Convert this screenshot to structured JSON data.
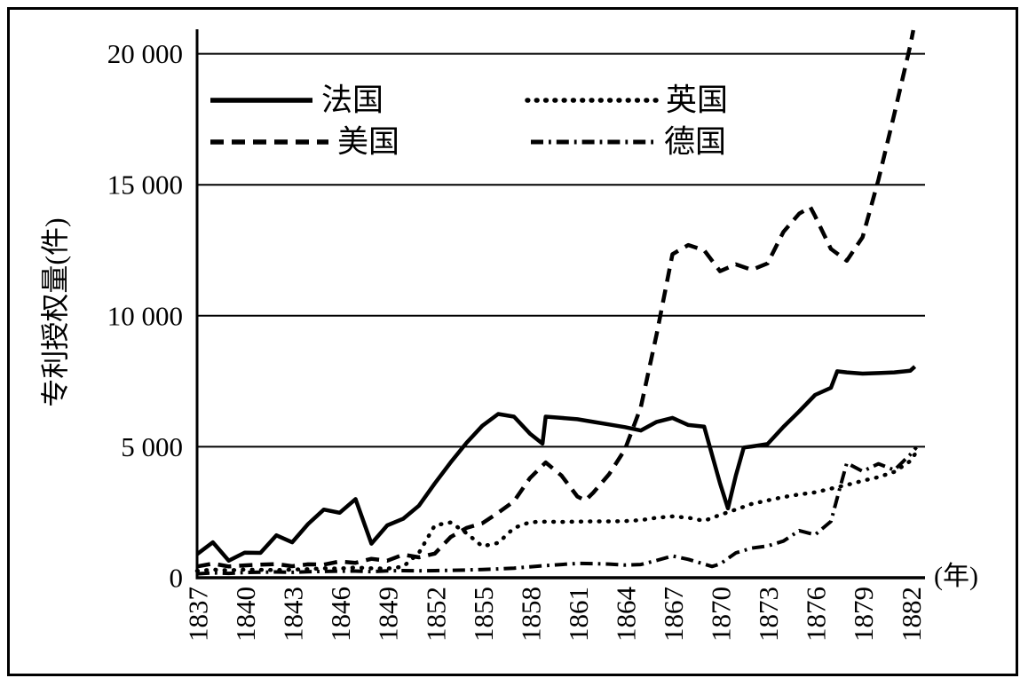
{
  "colors": {
    "line": "#000000",
    "background": "#ffffff"
  },
  "chart_data": {
    "type": "line",
    "title": "",
    "ylabel": "专利授权量(件)",
    "x_unit_label": "(年)",
    "xlim": [
      1837,
      1883
    ],
    "ylim": [
      0,
      20000
    ],
    "grid": "horizontal-gridlines-on",
    "legend_position": "top-left-inside-two-columns",
    "y_ticks": [
      {
        "label": "0",
        "value": 0
      },
      {
        "label": "5 000",
        "value": 5000
      },
      {
        "label": "10 000",
        "value": 10000
      },
      {
        "label": "15 000",
        "value": 15000
      },
      {
        "label": "20 000",
        "value": 20000
      }
    ],
    "x_ticks": [
      "1837",
      "1840",
      "1843",
      "1846",
      "1849",
      "1852",
      "1855",
      "1858",
      "1861",
      "1864",
      "1867",
      "1870",
      "1873",
      "1876",
      "1879",
      "1882"
    ],
    "series": [
      {
        "name": "法国",
        "line_style": "solid",
        "points": [
          [
            1837,
            900
          ],
          [
            1838,
            1350
          ],
          [
            1839,
            650
          ],
          [
            1840,
            960
          ],
          [
            1841,
            950
          ],
          [
            1842,
            1620
          ],
          [
            1843,
            1350
          ],
          [
            1844,
            2050
          ],
          [
            1845,
            2600
          ],
          [
            1846,
            2480
          ],
          [
            1847,
            3000
          ],
          [
            1848,
            1300
          ],
          [
            1849,
            2000
          ],
          [
            1850,
            2250
          ],
          [
            1851,
            2750
          ],
          [
            1852,
            3600
          ],
          [
            1853,
            4400
          ],
          [
            1854,
            5150
          ],
          [
            1855,
            5800
          ],
          [
            1856,
            6250
          ],
          [
            1857,
            6150
          ],
          [
            1858,
            5500
          ],
          [
            1858.8,
            5120
          ],
          [
            1859,
            6150
          ],
          [
            1860,
            6100
          ],
          [
            1861,
            6050
          ],
          [
            1862,
            5950
          ],
          [
            1863,
            5850
          ],
          [
            1864,
            5750
          ],
          [
            1865,
            5620
          ],
          [
            1866,
            5950
          ],
          [
            1867,
            6100
          ],
          [
            1868,
            5830
          ],
          [
            1869,
            5770
          ],
          [
            1870,
            3600
          ],
          [
            1870.5,
            2650
          ],
          [
            1871,
            3900
          ],
          [
            1871.5,
            4970
          ],
          [
            1872,
            5010
          ],
          [
            1873,
            5100
          ],
          [
            1874,
            5760
          ],
          [
            1875,
            6350
          ],
          [
            1876,
            6980
          ],
          [
            1877,
            7250
          ],
          [
            1877.4,
            7880
          ],
          [
            1878,
            7840
          ],
          [
            1879,
            7790
          ],
          [
            1880,
            7810
          ],
          [
            1881,
            7840
          ],
          [
            1882,
            7900
          ],
          [
            1882.3,
            8060
          ]
        ]
      },
      {
        "name": "英国",
        "line_style": "dotted",
        "points": [
          [
            1837,
            260
          ],
          [
            1838,
            310
          ],
          [
            1839,
            280
          ],
          [
            1840,
            310
          ],
          [
            1841,
            300
          ],
          [
            1842,
            290
          ],
          [
            1843,
            310
          ],
          [
            1844,
            330
          ],
          [
            1845,
            360
          ],
          [
            1846,
            350
          ],
          [
            1847,
            390
          ],
          [
            1848,
            360
          ],
          [
            1849,
            350
          ],
          [
            1850,
            420
          ],
          [
            1851,
            950
          ],
          [
            1852,
            2000
          ],
          [
            1853,
            2110
          ],
          [
            1854,
            1700
          ],
          [
            1855,
            1200
          ],
          [
            1856,
            1330
          ],
          [
            1857,
            1900
          ],
          [
            1858,
            2120
          ],
          [
            1859,
            2140
          ],
          [
            1860,
            2130
          ],
          [
            1861,
            2140
          ],
          [
            1862,
            2150
          ],
          [
            1863,
            2150
          ],
          [
            1864,
            2160
          ],
          [
            1865,
            2200
          ],
          [
            1866,
            2290
          ],
          [
            1867,
            2340
          ],
          [
            1868,
            2290
          ],
          [
            1869,
            2170
          ],
          [
            1870,
            2400
          ],
          [
            1871,
            2600
          ],
          [
            1872,
            2820
          ],
          [
            1873,
            2950
          ],
          [
            1874,
            3080
          ],
          [
            1875,
            3180
          ],
          [
            1876,
            3260
          ],
          [
            1877,
            3400
          ],
          [
            1878,
            3540
          ],
          [
            1879,
            3700
          ],
          [
            1880,
            3840
          ],
          [
            1881,
            4040
          ],
          [
            1882,
            4450
          ],
          [
            1882.4,
            4800
          ]
        ]
      },
      {
        "name": "美国",
        "line_style": "dashed",
        "points": [
          [
            1837,
            430
          ],
          [
            1838,
            540
          ],
          [
            1839,
            430
          ],
          [
            1840,
            470
          ],
          [
            1841,
            500
          ],
          [
            1842,
            520
          ],
          [
            1843,
            440
          ],
          [
            1844,
            510
          ],
          [
            1845,
            500
          ],
          [
            1846,
            620
          ],
          [
            1847,
            570
          ],
          [
            1848,
            720
          ],
          [
            1849,
            650
          ],
          [
            1850,
            880
          ],
          [
            1851,
            780
          ],
          [
            1852,
            920
          ],
          [
            1853,
            1550
          ],
          [
            1854,
            1900
          ],
          [
            1855,
            2080
          ],
          [
            1856,
            2480
          ],
          [
            1857,
            2920
          ],
          [
            1858,
            3800
          ],
          [
            1859,
            4400
          ],
          [
            1860,
            3900
          ],
          [
            1861,
            3100
          ],
          [
            1861.5,
            2950
          ],
          [
            1862,
            3250
          ],
          [
            1863,
            3950
          ],
          [
            1864,
            4900
          ],
          [
            1865,
            6500
          ],
          [
            1866,
            9300
          ],
          [
            1867,
            12350
          ],
          [
            1868,
            12700
          ],
          [
            1869,
            12500
          ],
          [
            1870,
            11700
          ],
          [
            1871,
            11960
          ],
          [
            1872,
            11750
          ],
          [
            1873,
            12000
          ],
          [
            1874,
            13200
          ],
          [
            1875,
            13900
          ],
          [
            1875.7,
            14150
          ],
          [
            1876,
            13800
          ],
          [
            1877,
            12550
          ],
          [
            1878,
            12100
          ],
          [
            1879,
            13000
          ],
          [
            1880,
            15200
          ],
          [
            1881,
            17700
          ],
          [
            1882,
            20300
          ],
          [
            1882.2,
            20900
          ]
        ]
      },
      {
        "name": "德国",
        "line_style": "dash-dot",
        "points": [
          [
            1837,
            150
          ],
          [
            1838,
            185
          ],
          [
            1839,
            165
          ],
          [
            1840,
            200
          ],
          [
            1841,
            210
          ],
          [
            1842,
            220
          ],
          [
            1843,
            205
          ],
          [
            1844,
            230
          ],
          [
            1845,
            240
          ],
          [
            1846,
            250
          ],
          [
            1847,
            255
          ],
          [
            1848,
            235
          ],
          [
            1849,
            260
          ],
          [
            1850,
            270
          ],
          [
            1851,
            265
          ],
          [
            1852,
            270
          ],
          [
            1853,
            280
          ],
          [
            1854,
            295
          ],
          [
            1855,
            315
          ],
          [
            1856,
            335
          ],
          [
            1857,
            365
          ],
          [
            1858,
            415
          ],
          [
            1859,
            465
          ],
          [
            1860,
            505
          ],
          [
            1861,
            545
          ],
          [
            1862,
            540
          ],
          [
            1863,
            520
          ],
          [
            1864,
            485
          ],
          [
            1865,
            505
          ],
          [
            1866,
            660
          ],
          [
            1867,
            830
          ],
          [
            1868,
            700
          ],
          [
            1869.5,
            430
          ],
          [
            1870,
            520
          ],
          [
            1871,
            950
          ],
          [
            1872,
            1130
          ],
          [
            1873,
            1210
          ],
          [
            1874,
            1400
          ],
          [
            1875,
            1800
          ],
          [
            1876,
            1640
          ],
          [
            1877,
            2150
          ],
          [
            1877.6,
            3500
          ],
          [
            1878,
            4380
          ],
          [
            1879,
            4060
          ],
          [
            1880,
            4350
          ],
          [
            1881,
            4110
          ],
          [
            1882,
            4700
          ],
          [
            1882.4,
            4980
          ]
        ]
      }
    ]
  }
}
